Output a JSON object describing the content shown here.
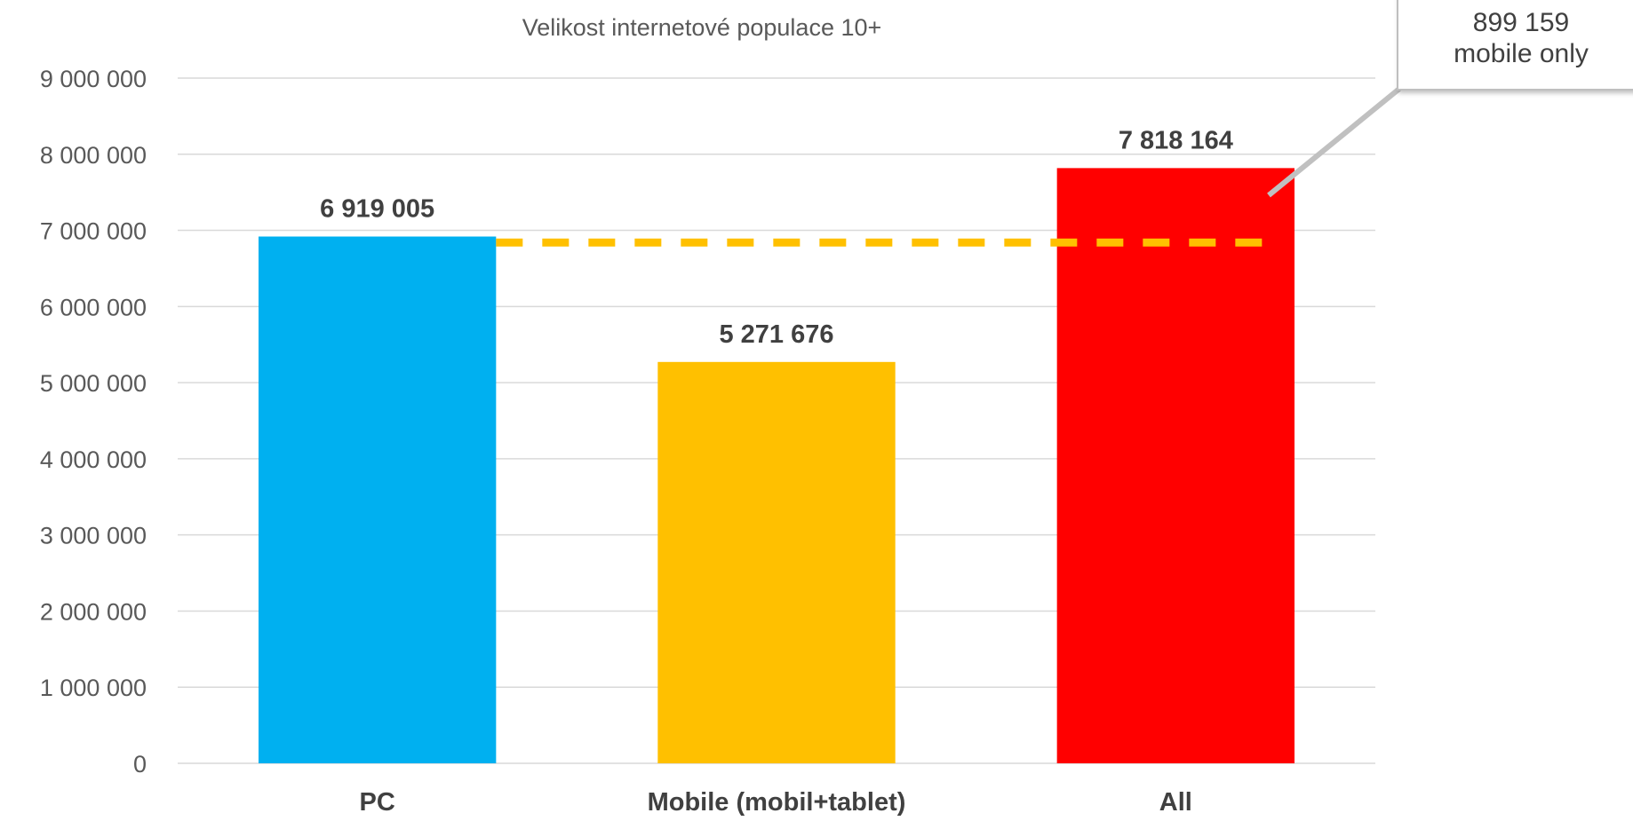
{
  "chart_data": {
    "type": "bar",
    "title": "Velikost internetové populace 10+",
    "xlabel": "",
    "ylabel": "",
    "categories": [
      "PC",
      "Mobile (mobil+tablet)",
      "All"
    ],
    "series": [
      {
        "values": [
          6919005,
          5271676,
          7818164
        ],
        "data_labels": [
          "6 919 005",
          "5 271 676",
          "7 818 164"
        ],
        "colors": [
          "#00B0F0",
          "#FFC000",
          "#FF0000"
        ]
      }
    ],
    "ylim": [
      0,
      9000000
    ],
    "yticks": [
      0,
      1000000,
      2000000,
      3000000,
      4000000,
      5000000,
      6000000,
      7000000,
      8000000,
      9000000
    ],
    "ytick_labels": [
      "0",
      "1 000 000",
      "2 000 000",
      "3 000 000",
      "4 000 000",
      "5 000 000",
      "6 000 000",
      "7 000 000",
      "8 000 000",
      "9 000 000"
    ],
    "grid": true,
    "reference_line": {
      "value": 6840000,
      "style": "dashed",
      "color": "#FFC000"
    },
    "annotation": {
      "line1": "899 159",
      "line2": "mobile only"
    }
  }
}
